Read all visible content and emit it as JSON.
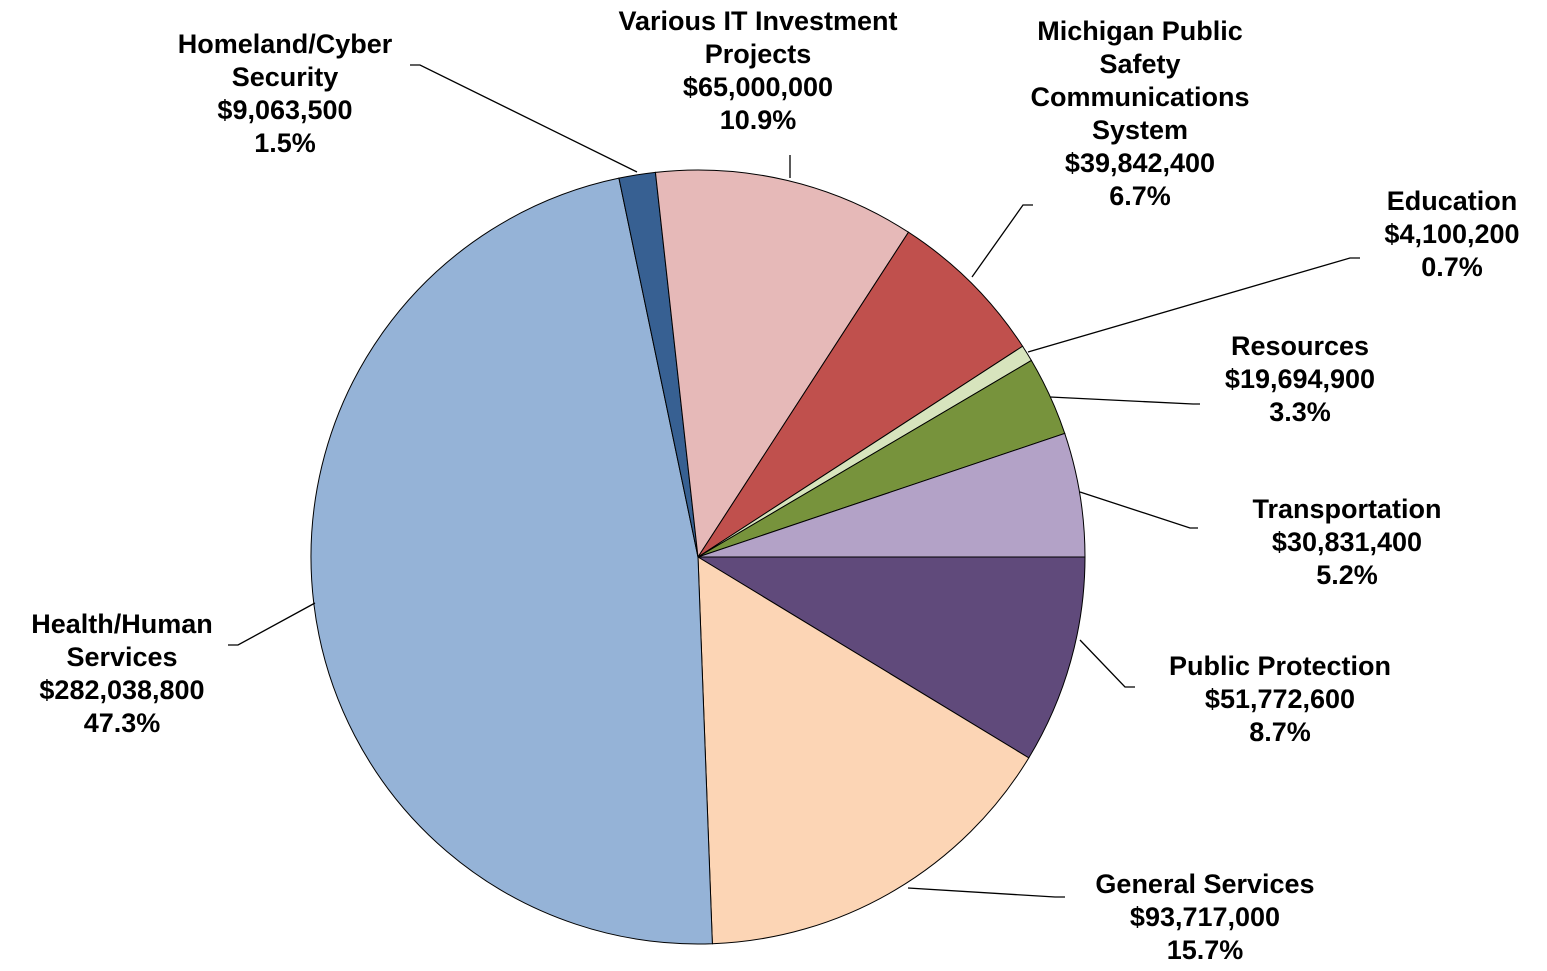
{
  "chart_data": {
    "type": "pie",
    "categories": [
      "Public Protection",
      "General Services",
      "Health/Human Services",
      "Homeland/Cyber Security",
      "Various IT Investment Projects",
      "Michigan Public Safety Communications System",
      "Education",
      "Resources",
      "Transportation"
    ],
    "values": [
      51772600,
      93717000,
      282038800,
      9063500,
      65000000,
      39842400,
      4100200,
      19694900,
      30831400
    ],
    "value_labels": [
      "$51,772,600",
      "$93,717,000",
      "$282,038,800",
      "$9,063,500",
      "$65,000,000",
      "$39,842,400",
      "$4,100,200",
      "$19,694,900",
      "$30,831,400"
    ],
    "percents": [
      8.7,
      15.7,
      47.3,
      1.5,
      10.9,
      6.7,
      0.7,
      3.3,
      5.2
    ],
    "percent_labels": [
      "8.7%",
      "15.7%",
      "47.3%",
      "1.5%",
      "10.9%",
      "6.7%",
      "0.7%",
      "3.3%",
      "5.2%"
    ],
    "colors": [
      "#604a7b",
      "#fcd5b5",
      "#95b3d7",
      "#376092",
      "#e6b9b8",
      "#c0504d",
      "#d7e4bd",
      "#77933c",
      "#b3a2c7"
    ]
  }
}
